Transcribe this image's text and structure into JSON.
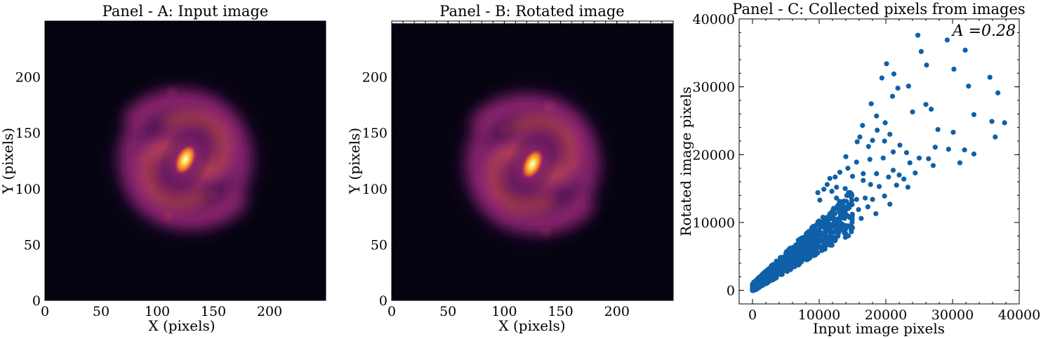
{
  "chart_data": [
    {
      "type": "heatmap",
      "title": "Panel - A: Input image",
      "xlabel": "X (pixels)",
      "ylabel": "Y (pixels)",
      "xlim": [
        0,
        250
      ],
      "ylim": [
        0,
        250
      ],
      "xticks": [
        "0",
        "50",
        "100",
        "150",
        "200"
      ],
      "yticks": [
        "0",
        "50",
        "100",
        "150",
        "200"
      ],
      "colormap": "inferno",
      "center": [
        125,
        124
      ],
      "arm_rotation_deg": 0
    },
    {
      "type": "heatmap",
      "title": "Panel - B: Rotated image",
      "xlabel": "X (pixels)",
      "ylabel": "Y (pixels)",
      "xlim": [
        0,
        250
      ],
      "ylim": [
        0,
        250
      ],
      "xticks": [
        "0",
        "50",
        "100",
        "150",
        "200"
      ],
      "yticks": [
        "0",
        "50",
        "100",
        "150",
        "200"
      ],
      "colormap": "inferno",
      "center": [
        125,
        124
      ],
      "arm_rotation_deg": 180
    },
    {
      "type": "scatter",
      "title": "Panel - C: Collected pixels from images",
      "xlabel": "Input image pixels",
      "ylabel": "Rotated image pixels",
      "xlim": [
        -2000,
        40000
      ],
      "ylim": [
        -2000,
        40000
      ],
      "xticks": [
        "0",
        "10000",
        "20000",
        "30000",
        "40000"
      ],
      "yticks": [
        "0",
        "10000",
        "20000",
        "30000",
        "40000"
      ],
      "annotation": "A =0.28",
      "marker_color": "#1060a8",
      "points": [
        [
          24800,
          37600
        ],
        [
          25300,
          35200
        ],
        [
          29200,
          36900
        ],
        [
          31900,
          35400
        ],
        [
          26100,
          33200
        ],
        [
          30200,
          32600
        ],
        [
          20100,
          33400
        ],
        [
          21200,
          31900
        ],
        [
          19400,
          31300
        ],
        [
          21800,
          29800
        ],
        [
          23400,
          30100
        ],
        [
          35600,
          31400
        ],
        [
          32400,
          30100
        ],
        [
          36800,
          29100
        ],
        [
          21000,
          28600
        ],
        [
          26000,
          27400
        ],
        [
          17800,
          27500
        ],
        [
          26800,
          26700
        ],
        [
          24000,
          26300
        ],
        [
          33200,
          25900
        ],
        [
          37800,
          24700
        ],
        [
          35900,
          24900
        ],
        [
          36400,
          22600
        ],
        [
          27800,
          23700
        ],
        [
          30100,
          23300
        ],
        [
          18600,
          25700
        ],
        [
          16500,
          24300
        ],
        [
          19900,
          24700
        ],
        [
          16100,
          22600
        ],
        [
          18700,
          23600
        ],
        [
          20600,
          23000
        ],
        [
          15700,
          21900
        ],
        [
          18000,
          22100
        ],
        [
          19800,
          22000
        ],
        [
          22100,
          21400
        ],
        [
          17400,
          21200
        ],
        [
          21100,
          20400
        ],
        [
          23100,
          20300
        ],
        [
          25000,
          19500
        ],
        [
          27400,
          21100
        ],
        [
          29400,
          20800
        ],
        [
          31800,
          20700
        ],
        [
          33200,
          20100
        ],
        [
          31100,
          18800
        ],
        [
          26400,
          19400
        ],
        [
          23600,
          18800
        ],
        [
          24400,
          17300
        ],
        [
          27100,
          18400
        ],
        [
          17600,
          19300
        ],
        [
          19600,
          19500
        ],
        [
          21100,
          17700
        ],
        [
          20400,
          16700
        ],
        [
          18600,
          17200
        ],
        [
          16600,
          17200
        ],
        [
          22700,
          16400
        ],
        [
          21600,
          15500
        ],
        [
          23300,
          15200
        ],
        [
          22000,
          17000
        ],
        [
          19000,
          15300
        ],
        [
          17700,
          15600
        ],
        [
          16600,
          16200
        ],
        [
          15000,
          16800
        ],
        [
          14300,
          18000
        ],
        [
          15600,
          18900
        ],
        [
          13100,
          17400
        ],
        [
          14000,
          19700
        ],
        [
          12400,
          16700
        ],
        [
          11200,
          15600
        ],
        [
          12600,
          15200
        ],
        [
          13900,
          15000
        ],
        [
          14700,
          14300
        ],
        [
          15600,
          13400
        ],
        [
          16900,
          13600
        ],
        [
          18000,
          13400
        ],
        [
          19800,
          13900
        ],
        [
          17300,
          12300
        ],
        [
          15900,
          11900
        ],
        [
          14500,
          12200
        ],
        [
          13200,
          11300
        ],
        [
          11900,
          14600
        ],
        [
          10700,
          14900
        ],
        [
          9800,
          14400
        ],
        [
          10100,
          13300
        ],
        [
          12600,
          13600
        ],
        [
          14100,
          13100
        ],
        [
          16300,
          10600
        ],
        [
          18500,
          11300
        ],
        [
          13800,
          10600
        ],
        [
          11600,
          16500
        ],
        [
          20600,
          12700
        ]
      ]
    }
  ]
}
